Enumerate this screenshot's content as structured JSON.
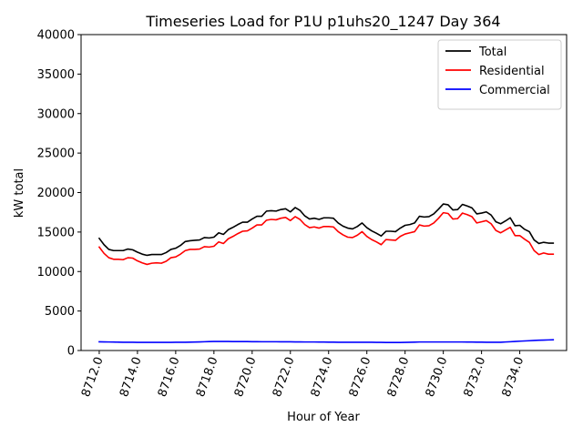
{
  "chart_data": {
    "type": "line",
    "title": "Timeseries Load for P1U p1uhs20_1247  Day 364",
    "xlabel": "Hour of Year",
    "ylabel": "kW total",
    "xlim": [
      8711.05,
      8736.45
    ],
    "ylim": [
      0,
      40000
    ],
    "xticks": [
      8712,
      8714,
      8716,
      8718,
      8720,
      8722,
      8724,
      8726,
      8728,
      8730,
      8732,
      8734
    ],
    "xtick_labels": [
      "8712.0",
      "8714.0",
      "8716.0",
      "8718.0",
      "8720.0",
      "8722.0",
      "8724.0",
      "8726.0",
      "8728.0",
      "8730.0",
      "8732.0",
      "8734.0"
    ],
    "yticks": [
      0,
      5000,
      10000,
      15000,
      20000,
      25000,
      30000,
      35000,
      40000
    ],
    "ytick_labels": [
      "0",
      "5000",
      "10000",
      "15000",
      "20000",
      "25000",
      "30000",
      "35000",
      "40000"
    ],
    "grid": false,
    "legend_position": "top-right",
    "x": [
      8712.0,
      8712.25,
      8712.5,
      8712.75,
      8713.0,
      8713.25,
      8713.5,
      8713.75,
      8714.0,
      8714.25,
      8714.5,
      8714.75,
      8715.0,
      8715.25,
      8715.5,
      8715.75,
      8716.0,
      8716.25,
      8716.5,
      8716.75,
      8717.0,
      8717.25,
      8717.5,
      8717.75,
      8718.0,
      8718.25,
      8718.5,
      8718.75,
      8719.0,
      8719.25,
      8719.5,
      8719.75,
      8720.0,
      8720.25,
      8720.5,
      8720.75,
      8721.0,
      8721.25,
      8721.5,
      8721.75,
      8722.0,
      8722.25,
      8722.5,
      8722.75,
      8723.0,
      8723.25,
      8723.5,
      8723.75,
      8724.0,
      8724.25,
      8724.5,
      8724.75,
      8725.0,
      8725.25,
      8725.5,
      8725.75,
      8726.0,
      8726.25,
      8726.5,
      8726.75,
      8727.0,
      8727.25,
      8727.5,
      8727.75,
      8728.0,
      8728.25,
      8728.5,
      8728.75,
      8729.0,
      8729.25,
      8729.5,
      8729.75,
      8730.0,
      8730.25,
      8730.5,
      8730.75,
      8731.0,
      8731.25,
      8731.5,
      8731.75,
      8732.0,
      8732.25,
      8732.5,
      8732.75,
      8733.0,
      8733.25,
      8733.5,
      8733.75,
      8734.0,
      8734.25,
      8734.5,
      8734.75,
      8735.0,
      8735.25,
      8735.5,
      8735.75
    ],
    "series": [
      {
        "name": "Total",
        "color": "#000000",
        "values": [
          14200,
          13400,
          12800,
          12650,
          12650,
          12650,
          12850,
          12750,
          12450,
          12200,
          12050,
          12150,
          12150,
          12150,
          12400,
          12800,
          12950,
          13300,
          13800,
          13900,
          13950,
          14000,
          14300,
          14250,
          14350,
          14900,
          14700,
          15300,
          15600,
          15950,
          16250,
          16250,
          16650,
          17000,
          17000,
          17650,
          17700,
          17650,
          17850,
          17950,
          17550,
          18100,
          17750,
          17050,
          16650,
          16750,
          16600,
          16800,
          16800,
          16750,
          16150,
          15750,
          15500,
          15400,
          15700,
          16150,
          15550,
          15150,
          14850,
          14500,
          15100,
          15100,
          15050,
          15500,
          15850,
          15950,
          16150,
          17000,
          16900,
          16950,
          17300,
          17900,
          18550,
          18450,
          17800,
          17850,
          18500,
          18300,
          18050,
          17300,
          17400,
          17550,
          17150,
          16300,
          16050,
          16400,
          16800,
          15800,
          15850,
          15350,
          15050,
          14000,
          13550,
          13700,
          13600,
          13600
        ]
      },
      {
        "name": "Residential",
        "color": "#ff0000",
        "values": [
          13100,
          12300,
          11750,
          11550,
          11550,
          11500,
          11750,
          11700,
          11350,
          11100,
          10900,
          11050,
          11100,
          11050,
          11300,
          11750,
          11850,
          12200,
          12650,
          12800,
          12800,
          12850,
          13150,
          13100,
          13200,
          13750,
          13550,
          14150,
          14450,
          14800,
          15100,
          15150,
          15500,
          15900,
          15900,
          16500,
          16600,
          16550,
          16750,
          16850,
          16450,
          16950,
          16600,
          15950,
          15550,
          15650,
          15500,
          15700,
          15700,
          15650,
          15050,
          14650,
          14350,
          14300,
          14600,
          15050,
          14450,
          14050,
          13750,
          13400,
          14050,
          14000,
          13950,
          14450,
          14750,
          14900,
          15050,
          15900,
          15750,
          15800,
          16150,
          16750,
          17450,
          17350,
          16650,
          16700,
          17400,
          17200,
          16950,
          16150,
          16300,
          16450,
          16050,
          15200,
          14900,
          15250,
          15600,
          14550,
          14550,
          14100,
          13700,
          12650,
          12150,
          12350,
          12200,
          12200
        ]
      },
      {
        "name": "Commercial",
        "color": "#0000ff",
        "values": [
          1100,
          1090,
          1080,
          1070,
          1060,
          1050,
          1040,
          1040,
          1030,
          1030,
          1030,
          1030,
          1030,
          1030,
          1030,
          1030,
          1040,
          1040,
          1050,
          1060,
          1070,
          1090,
          1110,
          1130,
          1140,
          1140,
          1140,
          1140,
          1130,
          1130,
          1130,
          1130,
          1120,
          1120,
          1110,
          1110,
          1110,
          1110,
          1100,
          1100,
          1100,
          1090,
          1090,
          1080,
          1080,
          1080,
          1070,
          1070,
          1060,
          1060,
          1050,
          1050,
          1040,
          1040,
          1040,
          1040,
          1040,
          1040,
          1030,
          1030,
          1020,
          1020,
          1020,
          1020,
          1030,
          1040,
          1060,
          1080,
          1080,
          1080,
          1080,
          1080,
          1080,
          1080,
          1080,
          1080,
          1080,
          1070,
          1070,
          1060,
          1060,
          1050,
          1050,
          1040,
          1040,
          1080,
          1110,
          1140,
          1180,
          1210,
          1240,
          1270,
          1300,
          1320,
          1340,
          1360
        ]
      }
    ]
  }
}
